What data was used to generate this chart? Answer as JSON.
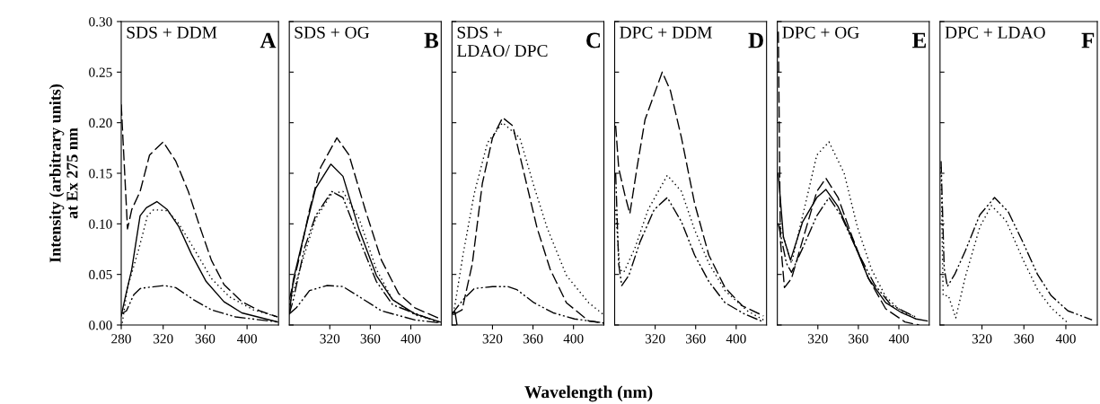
{
  "chart_data": [
    {
      "type": "line",
      "title": "SDS + DDM",
      "annotations": [
        "A"
      ],
      "ylabel": "Intensity (arbitrary units)\nat Ex 275 nm",
      "xlim": [
        280,
        430
      ],
      "xticks": [
        280,
        320,
        360,
        400
      ],
      "ylim": [
        0,
        0.3
      ],
      "yticks": [
        {
          "value": 0,
          "label": "0.00"
        },
        {
          "value": 0.05,
          "label": "0.05"
        },
        {
          "value": 0.1,
          "label": "0.10"
        },
        {
          "value": 0.15,
          "label": "0.15"
        },
        {
          "value": 0.2,
          "label": "0.20"
        },
        {
          "value": 0.25,
          "label": "0.25"
        },
        {
          "value": 0.3,
          "label": "0.30"
        }
      ],
      "grid": false,
      "series": [
        {
          "color": "#000000",
          "line_style": "dashed",
          "x": [
            280,
            286,
            290,
            298,
            307,
            320,
            332,
            344,
            355,
            366,
            378,
            395,
            412,
            429
          ],
          "values": [
            0.218,
            0.095,
            0.114,
            0.132,
            0.168,
            0.181,
            0.162,
            0.132,
            0.097,
            0.064,
            0.04,
            0.023,
            0.014,
            0.008
          ]
        },
        {
          "color": "#000000",
          "line_style": "solid",
          "x": [
            280,
            284,
            290,
            298,
            304,
            314,
            324,
            335,
            347,
            361,
            378,
            395,
            429
          ],
          "values": [
            0.009,
            0.028,
            0.055,
            0.108,
            0.116,
            0.122,
            0.114,
            0.097,
            0.07,
            0.043,
            0.023,
            0.012,
            0.003
          ]
        },
        {
          "color": "#000000",
          "line_style": "dotted",
          "x": [
            281,
            286,
            297,
            305,
            311,
            324,
            335,
            349,
            366,
            383,
            406,
            429
          ],
          "values": [
            0.002,
            0.037,
            0.076,
            0.108,
            0.114,
            0.113,
            0.1,
            0.076,
            0.046,
            0.028,
            0.015,
            0.008
          ]
        },
        {
          "color": "#000000",
          "line_style": "dashdot",
          "x": [
            280,
            285,
            292,
            298,
            304,
            321,
            332,
            349,
            366,
            389,
            429
          ],
          "values": [
            0.011,
            0.014,
            0.03,
            0.036,
            0.037,
            0.039,
            0.037,
            0.025,
            0.015,
            0.008,
            0.003
          ]
        }
      ]
    },
    {
      "type": "line",
      "title": "SDS + OG",
      "annotations": [
        "B"
      ],
      "xlim": [
        280,
        430
      ],
      "xticks": [
        320,
        360,
        400
      ],
      "ylim": [
        0,
        0.3
      ],
      "yticks": [
        0,
        0.05,
        0.1,
        0.15,
        0.2,
        0.25,
        0.3
      ],
      "tick_labels": "x",
      "grid": false,
      "series": [
        {
          "color": "#000000",
          "line_style": "dashed",
          "x": [
            280,
            290,
            300,
            311,
            327,
            339,
            355,
            371,
            388,
            404,
            429
          ],
          "values": [
            0.025,
            0.067,
            0.114,
            0.156,
            0.185,
            0.168,
            0.114,
            0.064,
            0.031,
            0.017,
            0.006
          ]
        },
        {
          "color": "#000000",
          "line_style": "solid",
          "x": [
            280,
            284,
            295,
            306,
            321,
            333,
            349,
            366,
            382,
            404,
            429
          ],
          "values": [
            0.011,
            0.045,
            0.091,
            0.135,
            0.159,
            0.147,
            0.094,
            0.049,
            0.025,
            0.011,
            0.003
          ]
        },
        {
          "color": "#000000",
          "line_style": "dotted",
          "x": [
            280,
            295,
            306,
            322,
            333,
            349,
            366,
            382,
            404,
            429
          ],
          "values": [
            0.02,
            0.07,
            0.105,
            0.13,
            0.132,
            0.105,
            0.055,
            0.025,
            0.01,
            0.003
          ]
        },
        {
          "color": "#000000",
          "line_style": "dashdot",
          "x": [
            280,
            284,
            295,
            306,
            322,
            333,
            349,
            366,
            382,
            429
          ],
          "values": [
            0.011,
            0.025,
            0.076,
            0.108,
            0.132,
            0.126,
            0.085,
            0.043,
            0.02,
            0.002
          ]
        },
        {
          "color": "#000000",
          "line_style": "dashdot",
          "x": [
            280,
            287,
            300,
            317,
            333,
            349,
            371,
            404,
            429
          ],
          "values": [
            0.011,
            0.017,
            0.034,
            0.039,
            0.038,
            0.028,
            0.014,
            0.005,
            0.002
          ]
        }
      ]
    },
    {
      "type": "line",
      "title": "SDS +\nLDAO/ DPC",
      "annotations": [
        "C"
      ],
      "xlabel": "Wavelength (nm)",
      "xlim": [
        280,
        430
      ],
      "xticks": [
        320,
        360,
        400
      ],
      "ylim": [
        0,
        0.3
      ],
      "yticks": [
        0,
        0.05,
        0.1,
        0.15,
        0.2,
        0.25,
        0.3
      ],
      "tick_labels": "x",
      "grid": false,
      "series": [
        {
          "color": "#000000",
          "line_style": "dotted",
          "x": [
            281,
            283,
            291,
            302,
            315,
            330,
            347,
            361,
            374,
            393,
            415,
            430
          ],
          "values": [
            0.012,
            0.02,
            0.07,
            0.13,
            0.18,
            0.2,
            0.185,
            0.137,
            0.096,
            0.049,
            0.022,
            0.01
          ]
        },
        {
          "color": "#000000",
          "line_style": "dashed",
          "x": [
            281,
            290,
            300,
            310,
            320,
            330,
            340,
            350,
            364,
            377,
            393,
            415,
            430
          ],
          "values": [
            0.01,
            0.015,
            0.06,
            0.14,
            0.185,
            0.205,
            0.197,
            0.155,
            0.096,
            0.055,
            0.022,
            0.004,
            0.002
          ]
        },
        {
          "color": "#000000",
          "line_style": "solid",
          "x": [
            280,
            283,
            285
          ],
          "values": [
            0.011,
            0.013,
            0.0
          ]
        },
        {
          "color": "#000000",
          "line_style": "dashdot",
          "x": [
            280,
            291,
            302,
            320,
            335,
            344,
            361,
            380,
            401,
            430
          ],
          "values": [
            0.011,
            0.025,
            0.036,
            0.038,
            0.038,
            0.035,
            0.022,
            0.012,
            0.006,
            0.002
          ]
        }
      ]
    },
    {
      "type": "line",
      "title": "DPC + DDM",
      "annotations": [
        "D"
      ],
      "xlim": [
        280,
        430
      ],
      "xticks": [
        320,
        360,
        400
      ],
      "ylim": [
        0,
        0.3
      ],
      "yticks": [
        0,
        0.05,
        0.1,
        0.15,
        0.2,
        0.25,
        0.3
      ],
      "tick_labels": "x",
      "grid": false,
      "series": [
        {
          "color": "#000000",
          "line_style": "dashed",
          "x": [
            281,
            284,
            290,
            295,
            302,
            310,
            327,
            335,
            346,
            359,
            373,
            389,
            406,
            427
          ],
          "values": [
            0.197,
            0.155,
            0.129,
            0.11,
            0.155,
            0.203,
            0.25,
            0.232,
            0.185,
            0.12,
            0.069,
            0.037,
            0.019,
            0.009
          ]
        },
        {
          "color": "#000000",
          "line_style": "dashdot",
          "x": [
            281,
            284,
            287,
            294,
            305,
            319,
            332,
            346,
            359,
            373,
            389,
            408,
            427
          ],
          "values": [
            0.15,
            0.06,
            0.039,
            0.049,
            0.082,
            0.114,
            0.126,
            0.102,
            0.069,
            0.043,
            0.022,
            0.011,
            0.003
          ]
        },
        {
          "color": "#000000",
          "line_style": "dotted",
          "x": [
            281,
            285,
            289,
            300,
            313,
            332,
            346,
            359,
            373,
            389,
            411,
            427
          ],
          "values": [
            0.114,
            0.055,
            0.052,
            0.076,
            0.114,
            0.148,
            0.132,
            0.094,
            0.061,
            0.034,
            0.014,
            0.005
          ]
        }
      ]
    },
    {
      "type": "line",
      "title": "DPC + OG",
      "annotations": [
        "E"
      ],
      "xlim": [
        280,
        430
      ],
      "xticks": [
        320,
        360,
        400
      ],
      "ylim": [
        0,
        0.3
      ],
      "yticks": [
        0,
        0.05,
        0.1,
        0.15,
        0.2,
        0.25,
        0.3
      ],
      "tick_labels": "x",
      "grid": false,
      "series": [
        {
          "color": "#000000",
          "line_style": "dotted",
          "x": [
            282,
            294,
            305,
            319,
            331,
            346,
            359,
            373,
            387,
            403,
            417
          ],
          "values": [
            0.1,
            0.061,
            0.108,
            0.168,
            0.181,
            0.15,
            0.097,
            0.055,
            0.028,
            0.013,
            0.008
          ]
        },
        {
          "color": "#000000",
          "line_style": "dashed",
          "x": [
            281,
            283,
            287,
            294,
            305,
            319,
            328,
            340,
            354,
            370,
            387,
            406,
            420
          ],
          "values": [
            0.29,
            0.084,
            0.037,
            0.046,
            0.084,
            0.132,
            0.145,
            0.126,
            0.087,
            0.046,
            0.016,
            0.003,
            0.0
          ]
        },
        {
          "color": "#000000",
          "line_style": "solid",
          "x": [
            281,
            286,
            293,
            305,
            319,
            328,
            340,
            354,
            370,
            387,
            403,
            417,
            428
          ],
          "values": [
            0.149,
            0.087,
            0.064,
            0.102,
            0.126,
            0.134,
            0.117,
            0.085,
            0.046,
            0.022,
            0.012,
            0.006,
            0.004
          ]
        },
        {
          "color": "#000000",
          "line_style": "dashdot",
          "x": [
            281,
            289,
            294,
            305,
            319,
            331,
            343,
            359,
            376,
            392,
            414
          ],
          "values": [
            0.1,
            0.061,
            0.052,
            0.076,
            0.108,
            0.126,
            0.108,
            0.073,
            0.04,
            0.02,
            0.009
          ]
        }
      ]
    },
    {
      "type": "line",
      "title": "DPC + LDAO",
      "annotations": [
        "F"
      ],
      "xlim": [
        280,
        430
      ],
      "xticks": [
        320,
        360,
        400
      ],
      "ylim": [
        0,
        0.3
      ],
      "yticks": [
        0,
        0.05,
        0.1,
        0.15,
        0.2,
        0.25,
        0.3
      ],
      "tick_labels": "x",
      "grid": false,
      "series": [
        {
          "color": "#000000",
          "line_style": "dashdot",
          "x": [
            281,
            284,
            287,
            294,
            304,
            318,
            332,
            345,
            359,
            373,
            386,
            402,
            425
          ],
          "values": [
            0.162,
            0.056,
            0.038,
            0.05,
            0.073,
            0.109,
            0.126,
            0.112,
            0.082,
            0.05,
            0.029,
            0.014,
            0.005
          ]
        },
        {
          "color": "#000000",
          "line_style": "dotted",
          "x": [
            281,
            283,
            288,
            295,
            304,
            318,
            329,
            343,
            359,
            373,
            386,
            402
          ],
          "values": [
            0.156,
            0.029,
            0.029,
            0.007,
            0.047,
            0.097,
            0.118,
            0.103,
            0.065,
            0.035,
            0.017,
            0.002
          ]
        }
      ]
    }
  ]
}
